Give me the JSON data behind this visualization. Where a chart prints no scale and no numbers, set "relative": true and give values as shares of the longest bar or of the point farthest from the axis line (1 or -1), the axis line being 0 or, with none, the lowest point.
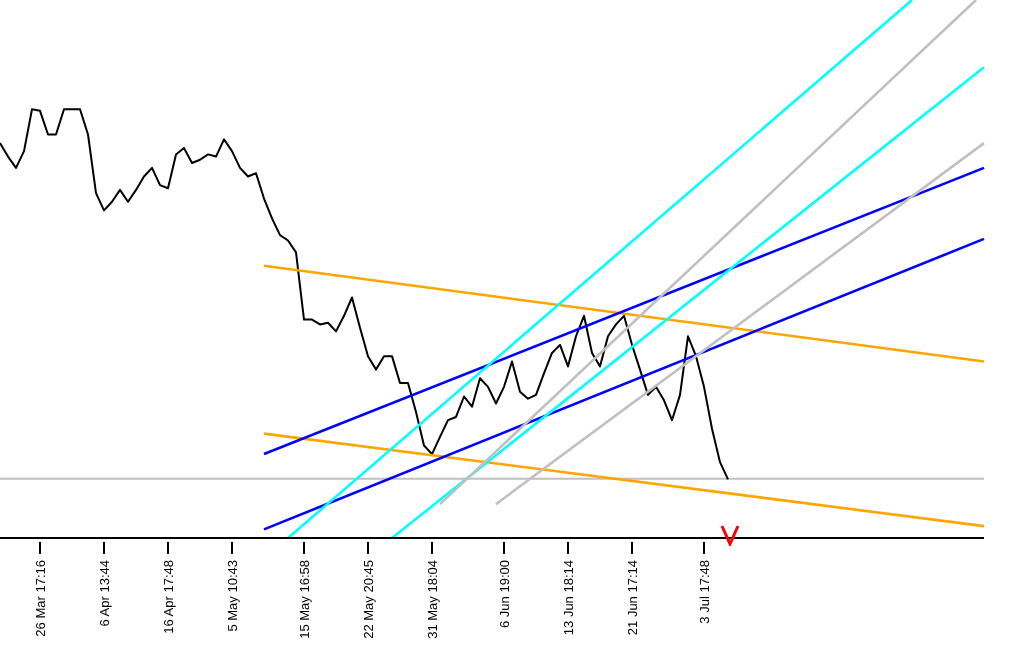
{
  "chart_data": {
    "type": "line",
    "relative": true,
    "grid": false,
    "marker": "none",
    "line_style": "solid",
    "categories": [
      null,
      null,
      null,
      null,
      null,
      "26 Mar 17:16",
      null,
      null,
      null,
      null,
      null,
      null,
      null,
      "6 Apr 13:44",
      null,
      null,
      null,
      null,
      null,
      null,
      null,
      "16 Apr 17:48",
      null,
      null,
      null,
      null,
      null,
      null,
      null,
      "5 May 10:43",
      null,
      null,
      null,
      null,
      null,
      null,
      null,
      null,
      "15 May 16:58",
      null,
      null,
      null,
      null,
      null,
      null,
      null,
      "22 May 20:45",
      null,
      null,
      null,
      null,
      null,
      null,
      null,
      "31 May 18:04",
      null,
      null,
      null,
      null,
      null,
      null,
      null,
      null,
      "6 Jun 19:00",
      null,
      null,
      null,
      null,
      null,
      null,
      null,
      "13 Jun 18:14",
      null,
      null,
      null,
      null,
      null,
      null,
      null,
      "21 Jun 17:14",
      null,
      null,
      null,
      null,
      null,
      null,
      null,
      null,
      "3 Jul 17:48",
      null,
      null,
      null,
      null,
      null,
      null,
      null,
      null,
      null,
      null,
      null,
      null,
      null,
      null,
      null,
      null,
      null,
      null,
      null,
      null,
      null,
      null,
      null,
      null,
      null,
      null,
      null,
      null,
      null,
      null,
      null,
      null,
      null,
      null,
      null
    ],
    "ref_lines": [
      {
        "axis": "y",
        "value": 0.11,
        "label": null,
        "color": "#c0c0c0"
      }
    ],
    "series": [
      {
        "color": "#000000",
        "values": [
          0.734,
          0.709,
          0.688,
          0.719,
          0.797,
          0.794,
          0.75,
          0.75,
          0.797,
          0.797,
          0.797,
          0.75,
          0.641,
          0.609,
          0.625,
          0.647,
          0.625,
          0.647,
          0.672,
          0.688,
          0.656,
          0.65,
          0.713,
          0.725,
          0.697,
          0.703,
          0.713,
          0.709,
          0.741,
          0.719,
          0.688,
          0.672,
          0.678,
          0.631,
          0.594,
          0.563,
          0.553,
          0.531,
          0.406,
          0.406,
          0.397,
          0.4,
          0.384,
          0.413,
          0.447,
          0.391,
          0.338,
          0.313,
          0.338,
          0.338,
          0.288,
          0.288,
          0.234,
          0.172,
          0.156,
          0.188,
          0.219,
          0.225,
          0.263,
          0.244,
          0.297,
          0.281,
          0.25,
          0.281,
          0.328,
          0.272,
          0.259,
          0.266,
          0.306,
          0.344,
          0.359,
          0.319,
          0.375,
          0.413,
          0.344,
          0.319,
          0.375,
          0.397,
          0.413,
          0.359,
          0.313,
          0.266,
          0.281,
          0.256,
          0.219,
          0.266,
          0.375,
          0.338,
          0.281,
          0.203,
          0.141,
          0.109,
          null,
          null,
          null,
          null,
          null,
          null,
          null,
          null,
          null,
          null,
          null,
          null,
          null,
          null,
          null,
          null,
          null,
          null,
          null,
          null,
          null,
          null,
          null,
          null,
          null,
          null,
          null,
          null,
          null,
          null,
          null,
          null
        ]
      },
      {
        "color": "#ffa500",
        "values": [
          null,
          null,
          null,
          null,
          null,
          null,
          null,
          null,
          null,
          null,
          null,
          null,
          null,
          null,
          null,
          null,
          null,
          null,
          null,
          null,
          null,
          null,
          null,
          null,
          null,
          null,
          null,
          null,
          null,
          null,
          null,
          null,
          null,
          0.506,
          null,
          null,
          null,
          null,
          null,
          null,
          null,
          null,
          null,
          null,
          null,
          null,
          null,
          null,
          null,
          null,
          null,
          null,
          null,
          null,
          null,
          null,
          null,
          null,
          null,
          null,
          null,
          null,
          null,
          null,
          null,
          null,
          null,
          null,
          null,
          null,
          null,
          null,
          null,
          null,
          null,
          null,
          null,
          null,
          null,
          null,
          null,
          null,
          null,
          null,
          null,
          null,
          null,
          null,
          null,
          null,
          null,
          null,
          null,
          null,
          null,
          null,
          null,
          null,
          null,
          null,
          null,
          null,
          null,
          null,
          null,
          null,
          null,
          null,
          null,
          null,
          null,
          null,
          null,
          null,
          null,
          null,
          null,
          null,
          null,
          null,
          null,
          null,
          null,
          0.328
        ]
      },
      {
        "color": "#ffa500",
        "values": [
          null,
          null,
          null,
          null,
          null,
          null,
          null,
          null,
          null,
          null,
          null,
          null,
          null,
          null,
          null,
          null,
          null,
          null,
          null,
          null,
          null,
          null,
          null,
          null,
          null,
          null,
          null,
          null,
          null,
          null,
          null,
          null,
          null,
          0.194,
          null,
          null,
          null,
          null,
          null,
          null,
          null,
          null,
          null,
          null,
          null,
          null,
          null,
          null,
          null,
          null,
          null,
          null,
          null,
          null,
          null,
          null,
          null,
          null,
          null,
          null,
          null,
          null,
          null,
          null,
          null,
          null,
          null,
          null,
          null,
          null,
          null,
          null,
          null,
          null,
          null,
          null,
          null,
          null,
          null,
          null,
          null,
          null,
          null,
          null,
          null,
          null,
          null,
          null,
          null,
          null,
          null,
          null,
          null,
          null,
          null,
          null,
          null,
          null,
          null,
          null,
          null,
          null,
          null,
          null,
          null,
          null,
          null,
          null,
          null,
          null,
          null,
          null,
          null,
          null,
          null,
          null,
          null,
          null,
          null,
          null,
          null,
          null,
          null,
          0.022
        ]
      },
      {
        "color": "#0000ff",
        "values": [
          null,
          null,
          null,
          null,
          null,
          null,
          null,
          null,
          null,
          null,
          null,
          null,
          null,
          null,
          null,
          null,
          null,
          null,
          null,
          null,
          null,
          null,
          null,
          null,
          null,
          null,
          null,
          null,
          null,
          null,
          null,
          null,
          null,
          0.156,
          null,
          null,
          null,
          null,
          null,
          null,
          null,
          null,
          null,
          null,
          null,
          null,
          null,
          null,
          null,
          null,
          null,
          null,
          null,
          null,
          null,
          null,
          null,
          null,
          null,
          null,
          null,
          null,
          null,
          null,
          null,
          null,
          null,
          null,
          null,
          null,
          null,
          null,
          null,
          null,
          null,
          null,
          null,
          null,
          null,
          null,
          null,
          null,
          null,
          null,
          null,
          null,
          null,
          null,
          null,
          null,
          null,
          null,
          null,
          null,
          null,
          null,
          null,
          null,
          null,
          null,
          null,
          null,
          null,
          null,
          null,
          null,
          null,
          null,
          null,
          null,
          null,
          null,
          null,
          null,
          null,
          null,
          null,
          null,
          null,
          null,
          null,
          null,
          null,
          0.688
        ]
      },
      {
        "color": "#0000ff",
        "values": [
          null,
          null,
          null,
          null,
          null,
          null,
          null,
          null,
          null,
          null,
          null,
          null,
          null,
          null,
          null,
          null,
          null,
          null,
          null,
          null,
          null,
          null,
          null,
          null,
          null,
          null,
          null,
          null,
          null,
          null,
          null,
          null,
          null,
          0.016,
          null,
          null,
          null,
          null,
          null,
          null,
          null,
          null,
          null,
          null,
          null,
          null,
          null,
          null,
          null,
          null,
          null,
          null,
          null,
          null,
          null,
          null,
          null,
          null,
          null,
          null,
          null,
          null,
          null,
          null,
          null,
          null,
          null,
          null,
          null,
          null,
          null,
          null,
          null,
          null,
          null,
          null,
          null,
          null,
          null,
          null,
          null,
          null,
          null,
          null,
          null,
          null,
          null,
          null,
          null,
          null,
          null,
          null,
          null,
          null,
          null,
          null,
          null,
          null,
          null,
          null,
          null,
          null,
          null,
          null,
          null,
          null,
          null,
          null,
          null,
          null,
          null,
          null,
          null,
          null,
          null,
          null,
          null,
          null,
          null,
          null,
          null,
          null,
          null,
          0.556
        ]
      },
      {
        "color": "#00ffff",
        "values": [
          null,
          null,
          null,
          null,
          null,
          null,
          null,
          null,
          null,
          null,
          null,
          null,
          null,
          null,
          null,
          null,
          null,
          null,
          null,
          null,
          null,
          null,
          null,
          null,
          null,
          null,
          null,
          null,
          null,
          null,
          null,
          null,
          null,
          null,
          null,
          null,
          0,
          null,
          null,
          null,
          null,
          null,
          null,
          null,
          null,
          null,
          null,
          null,
          null,
          null,
          null,
          null,
          null,
          null,
          null,
          null,
          null,
          null,
          null,
          null,
          null,
          null,
          null,
          null,
          null,
          null,
          null,
          null,
          null,
          null,
          null,
          null,
          null,
          null,
          null,
          null,
          null,
          null,
          null,
          null,
          null,
          null,
          null,
          null,
          null,
          null,
          null,
          null,
          null,
          null,
          null,
          null,
          null,
          null,
          null,
          null,
          null,
          null,
          null,
          null,
          null,
          null,
          null,
          null,
          null,
          null,
          null,
          null,
          null,
          null,
          null,
          null,
          null,
          null,
          1,
          null,
          null,
          null,
          null,
          null,
          null,
          null,
          null,
          null
        ]
      },
      {
        "color": "#00ffff",
        "values": [
          null,
          null,
          null,
          null,
          null,
          null,
          null,
          null,
          null,
          null,
          null,
          null,
          null,
          null,
          null,
          null,
          null,
          null,
          null,
          null,
          null,
          null,
          null,
          null,
          null,
          null,
          null,
          null,
          null,
          null,
          null,
          null,
          null,
          null,
          null,
          null,
          null,
          null,
          null,
          null,
          null,
          null,
          null,
          null,
          null,
          null,
          null,
          null,
          null,
          0,
          null,
          null,
          null,
          null,
          null,
          null,
          null,
          null,
          null,
          null,
          null,
          null,
          null,
          null,
          null,
          null,
          null,
          null,
          null,
          null,
          null,
          null,
          null,
          null,
          null,
          null,
          null,
          null,
          null,
          null,
          null,
          null,
          null,
          null,
          null,
          null,
          null,
          null,
          null,
          null,
          null,
          null,
          null,
          null,
          null,
          null,
          null,
          null,
          null,
          null,
          null,
          null,
          null,
          null,
          null,
          null,
          null,
          null,
          null,
          null,
          null,
          null,
          null,
          null,
          null,
          null,
          null,
          null,
          null,
          null,
          null,
          null,
          null,
          0.875
        ]
      },
      {
        "color": "#c0c0c0",
        "values": [
          null,
          null,
          null,
          null,
          null,
          null,
          null,
          null,
          null,
          null,
          null,
          null,
          null,
          null,
          null,
          null,
          null,
          null,
          null,
          null,
          null,
          null,
          null,
          null,
          null,
          null,
          null,
          null,
          null,
          null,
          null,
          null,
          null,
          null,
          null,
          null,
          null,
          null,
          null,
          null,
          null,
          null,
          null,
          null,
          null,
          null,
          null,
          null,
          null,
          null,
          null,
          null,
          null,
          null,
          null,
          0.063,
          null,
          null,
          null,
          null,
          null,
          null,
          null,
          null,
          null,
          null,
          null,
          null,
          null,
          null,
          null,
          null,
          null,
          null,
          null,
          null,
          null,
          null,
          null,
          null,
          null,
          null,
          null,
          null,
          null,
          null,
          null,
          null,
          null,
          null,
          null,
          null,
          null,
          null,
          null,
          null,
          null,
          null,
          null,
          null,
          null,
          null,
          null,
          null,
          null,
          null,
          null,
          null,
          null,
          null,
          null,
          null,
          null,
          null,
          null,
          null,
          null,
          null,
          null,
          null,
          null,
          null,
          1,
          null
        ]
      },
      {
        "color": "#c0c0c0",
        "values": [
          null,
          null,
          null,
          null,
          null,
          null,
          null,
          null,
          null,
          null,
          null,
          null,
          null,
          null,
          null,
          null,
          null,
          null,
          null,
          null,
          null,
          null,
          null,
          null,
          null,
          null,
          null,
          null,
          null,
          null,
          null,
          null,
          null,
          null,
          null,
          null,
          null,
          null,
          null,
          null,
          null,
          null,
          null,
          null,
          null,
          null,
          null,
          null,
          null,
          null,
          null,
          null,
          null,
          null,
          null,
          null,
          null,
          null,
          null,
          null,
          null,
          null,
          0.063,
          null,
          null,
          null,
          null,
          null,
          null,
          null,
          null,
          null,
          null,
          null,
          null,
          null,
          null,
          null,
          null,
          null,
          null,
          null,
          null,
          null,
          null,
          null,
          null,
          null,
          null,
          null,
          null,
          null,
          null,
          null,
          null,
          null,
          null,
          null,
          null,
          null,
          null,
          null,
          null,
          null,
          null,
          null,
          null,
          null,
          null,
          null,
          null,
          null,
          null,
          null,
          null,
          null,
          null,
          null,
          null,
          null,
          null,
          null,
          null,
          0.734
        ]
      }
    ]
  }
}
